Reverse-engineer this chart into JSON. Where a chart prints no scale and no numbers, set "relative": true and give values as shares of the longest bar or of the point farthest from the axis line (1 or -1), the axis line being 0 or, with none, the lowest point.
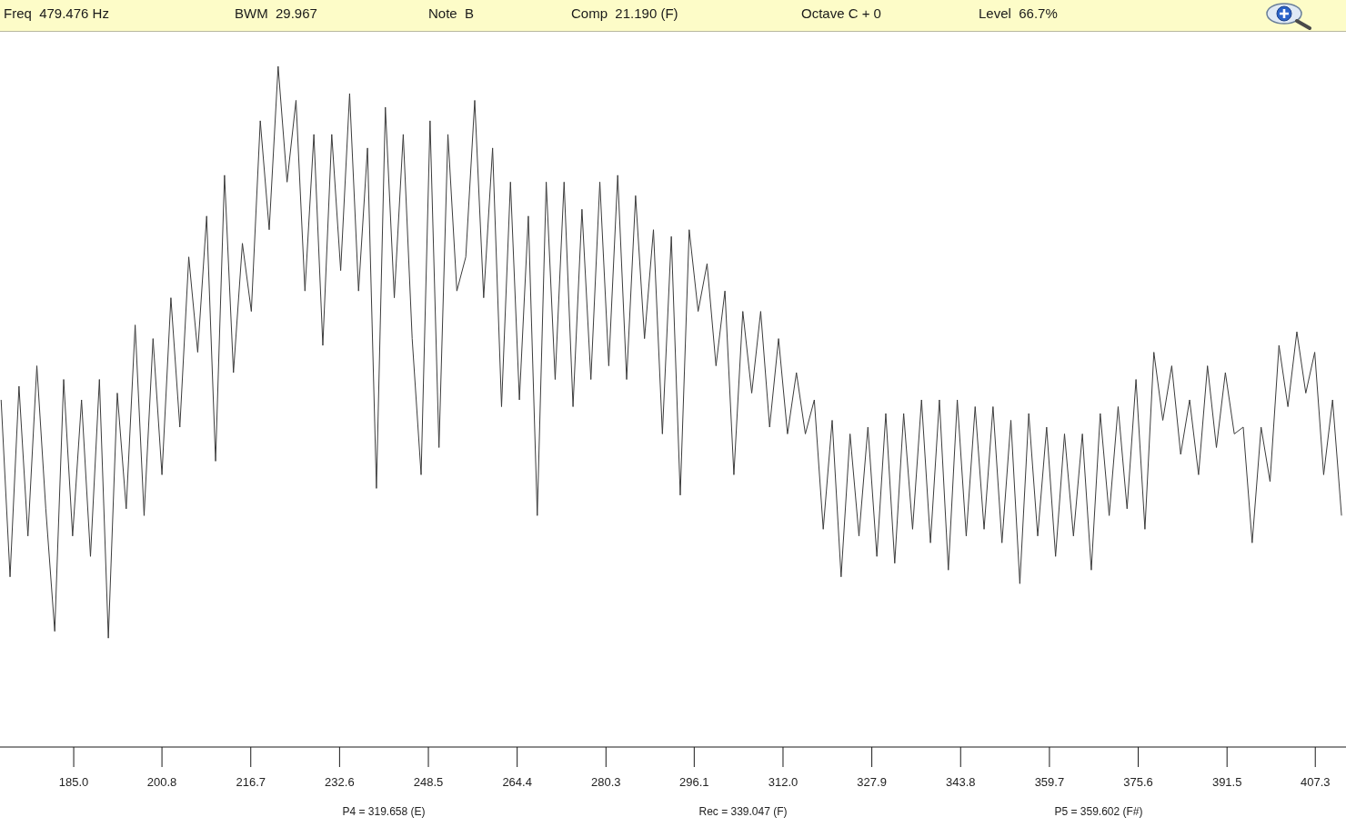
{
  "chart_data": {
    "type": "line",
    "relative": true,
    "x": [
      172,
      173.6,
      175.2,
      176.8,
      178.4,
      180,
      181.6,
      183.2,
      184.8,
      186.4,
      188,
      189.6,
      191.2,
      192.8,
      194.4,
      196,
      197.6,
      199.2,
      200.8,
      202.4,
      204,
      205.6,
      207.2,
      208.8,
      210.4,
      212,
      213.6,
      215.2,
      216.8,
      218.4,
      220,
      221.6,
      223.2,
      224.8,
      226.4,
      228,
      229.6,
      231.2,
      232.8,
      234.4,
      236,
      237.6,
      239.2,
      240.8,
      242.4,
      244,
      245.6,
      247.2,
      248.8,
      250.4,
      252,
      253.6,
      255.2,
      256.8,
      258.4,
      260,
      261.6,
      263.2,
      264.8,
      266.4,
      268,
      269.6,
      271.2,
      272.8,
      274.4,
      276,
      277.6,
      279.2,
      280.8,
      282.4,
      284,
      285.6,
      287.2,
      288.8,
      290.4,
      292,
      293.6,
      295.2,
      296.8,
      298.4,
      300,
      301.6,
      303.2,
      304.8,
      306.4,
      308,
      309.6,
      311.2,
      312.8,
      314.4,
      316,
      317.6,
      319.2,
      320.8,
      322.4,
      324,
      325.6,
      327.2,
      328.8,
      330.4,
      332,
      333.6,
      335.2,
      336.8,
      338.4,
      340,
      341.6,
      343.2,
      344.8,
      346.4,
      348,
      349.6,
      351.2,
      352.8,
      354.4,
      356,
      357.6,
      359.2,
      360.8,
      362.4,
      364,
      365.6,
      367.2,
      368.8,
      370.4,
      372,
      373.6,
      375.2,
      376.8,
      378.4,
      380,
      381.6,
      383.2,
      384.8,
      386.4,
      388,
      389.6,
      391.2,
      392.8,
      394.4,
      396,
      397.6,
      399.2,
      400.8,
      402.4,
      404,
      405.6,
      407.2,
      408.8,
      410.4,
      412
    ],
    "series": [
      {
        "color": "#3c3c3c",
        "values": [
          0.51,
          0.25,
          0.53,
          0.31,
          0.56,
          0.35,
          0.17,
          0.54,
          0.31,
          0.51,
          0.28,
          0.54,
          0.16,
          0.52,
          0.35,
          0.62,
          0.34,
          0.6,
          0.4,
          0.66,
          0.47,
          0.72,
          0.58,
          0.78,
          0.42,
          0.84,
          0.55,
          0.74,
          0.64,
          0.92,
          0.76,
          1.0,
          0.83,
          0.95,
          0.67,
          0.9,
          0.59,
          0.9,
          0.7,
          0.96,
          0.67,
          0.88,
          0.38,
          0.94,
          0.66,
          0.9,
          0.6,
          0.4,
          0.92,
          0.44,
          0.9,
          0.67,
          0.72,
          0.95,
          0.66,
          0.88,
          0.5,
          0.83,
          0.51,
          0.78,
          0.34,
          0.83,
          0.54,
          0.83,
          0.5,
          0.79,
          0.54,
          0.83,
          0.56,
          0.84,
          0.54,
          0.81,
          0.6,
          0.76,
          0.46,
          0.75,
          0.37,
          0.76,
          0.64,
          0.71,
          0.56,
          0.67,
          0.4,
          0.64,
          0.52,
          0.64,
          0.47,
          0.6,
          0.46,
          0.55,
          0.46,
          0.51,
          0.32,
          0.48,
          0.25,
          0.46,
          0.31,
          0.47,
          0.28,
          0.49,
          0.27,
          0.49,
          0.32,
          0.51,
          0.3,
          0.51,
          0.26,
          0.51,
          0.31,
          0.5,
          0.32,
          0.5,
          0.3,
          0.48,
          0.24,
          0.49,
          0.31,
          0.47,
          0.28,
          0.46,
          0.31,
          0.46,
          0.26,
          0.49,
          0.34,
          0.5,
          0.35,
          0.54,
          0.32,
          0.58,
          0.48,
          0.56,
          0.43,
          0.51,
          0.4,
          0.56,
          0.44,
          0.55,
          0.46,
          0.47,
          0.3,
          0.47,
          0.39,
          0.59,
          0.5,
          0.61,
          0.52,
          0.58,
          0.4,
          0.51,
          0.34
        ]
      }
    ],
    "xlim": [
      171.8,
      412.8
    ],
    "xticks": [
      {
        "value": 185,
        "label": "185.0"
      },
      200.8,
      216.7,
      232.6,
      248.5,
      264.4,
      280.3,
      296.1,
      {
        "value": 312,
        "label": "312.0"
      },
      327.9,
      343.8,
      359.7,
      375.6,
      391.5,
      407.3
    ],
    "annotations": [
      "Freq  479.476 Hz",
      "BWM  29.967",
      "Note  B",
      "Comp  21.190 (F)",
      "Octave C + 0",
      "Level  66.7%",
      "P4 = 319.658 (E)",
      "Rec = 339.047 (F)",
      "P5 = 359.602 (F#)"
    ]
  }
}
